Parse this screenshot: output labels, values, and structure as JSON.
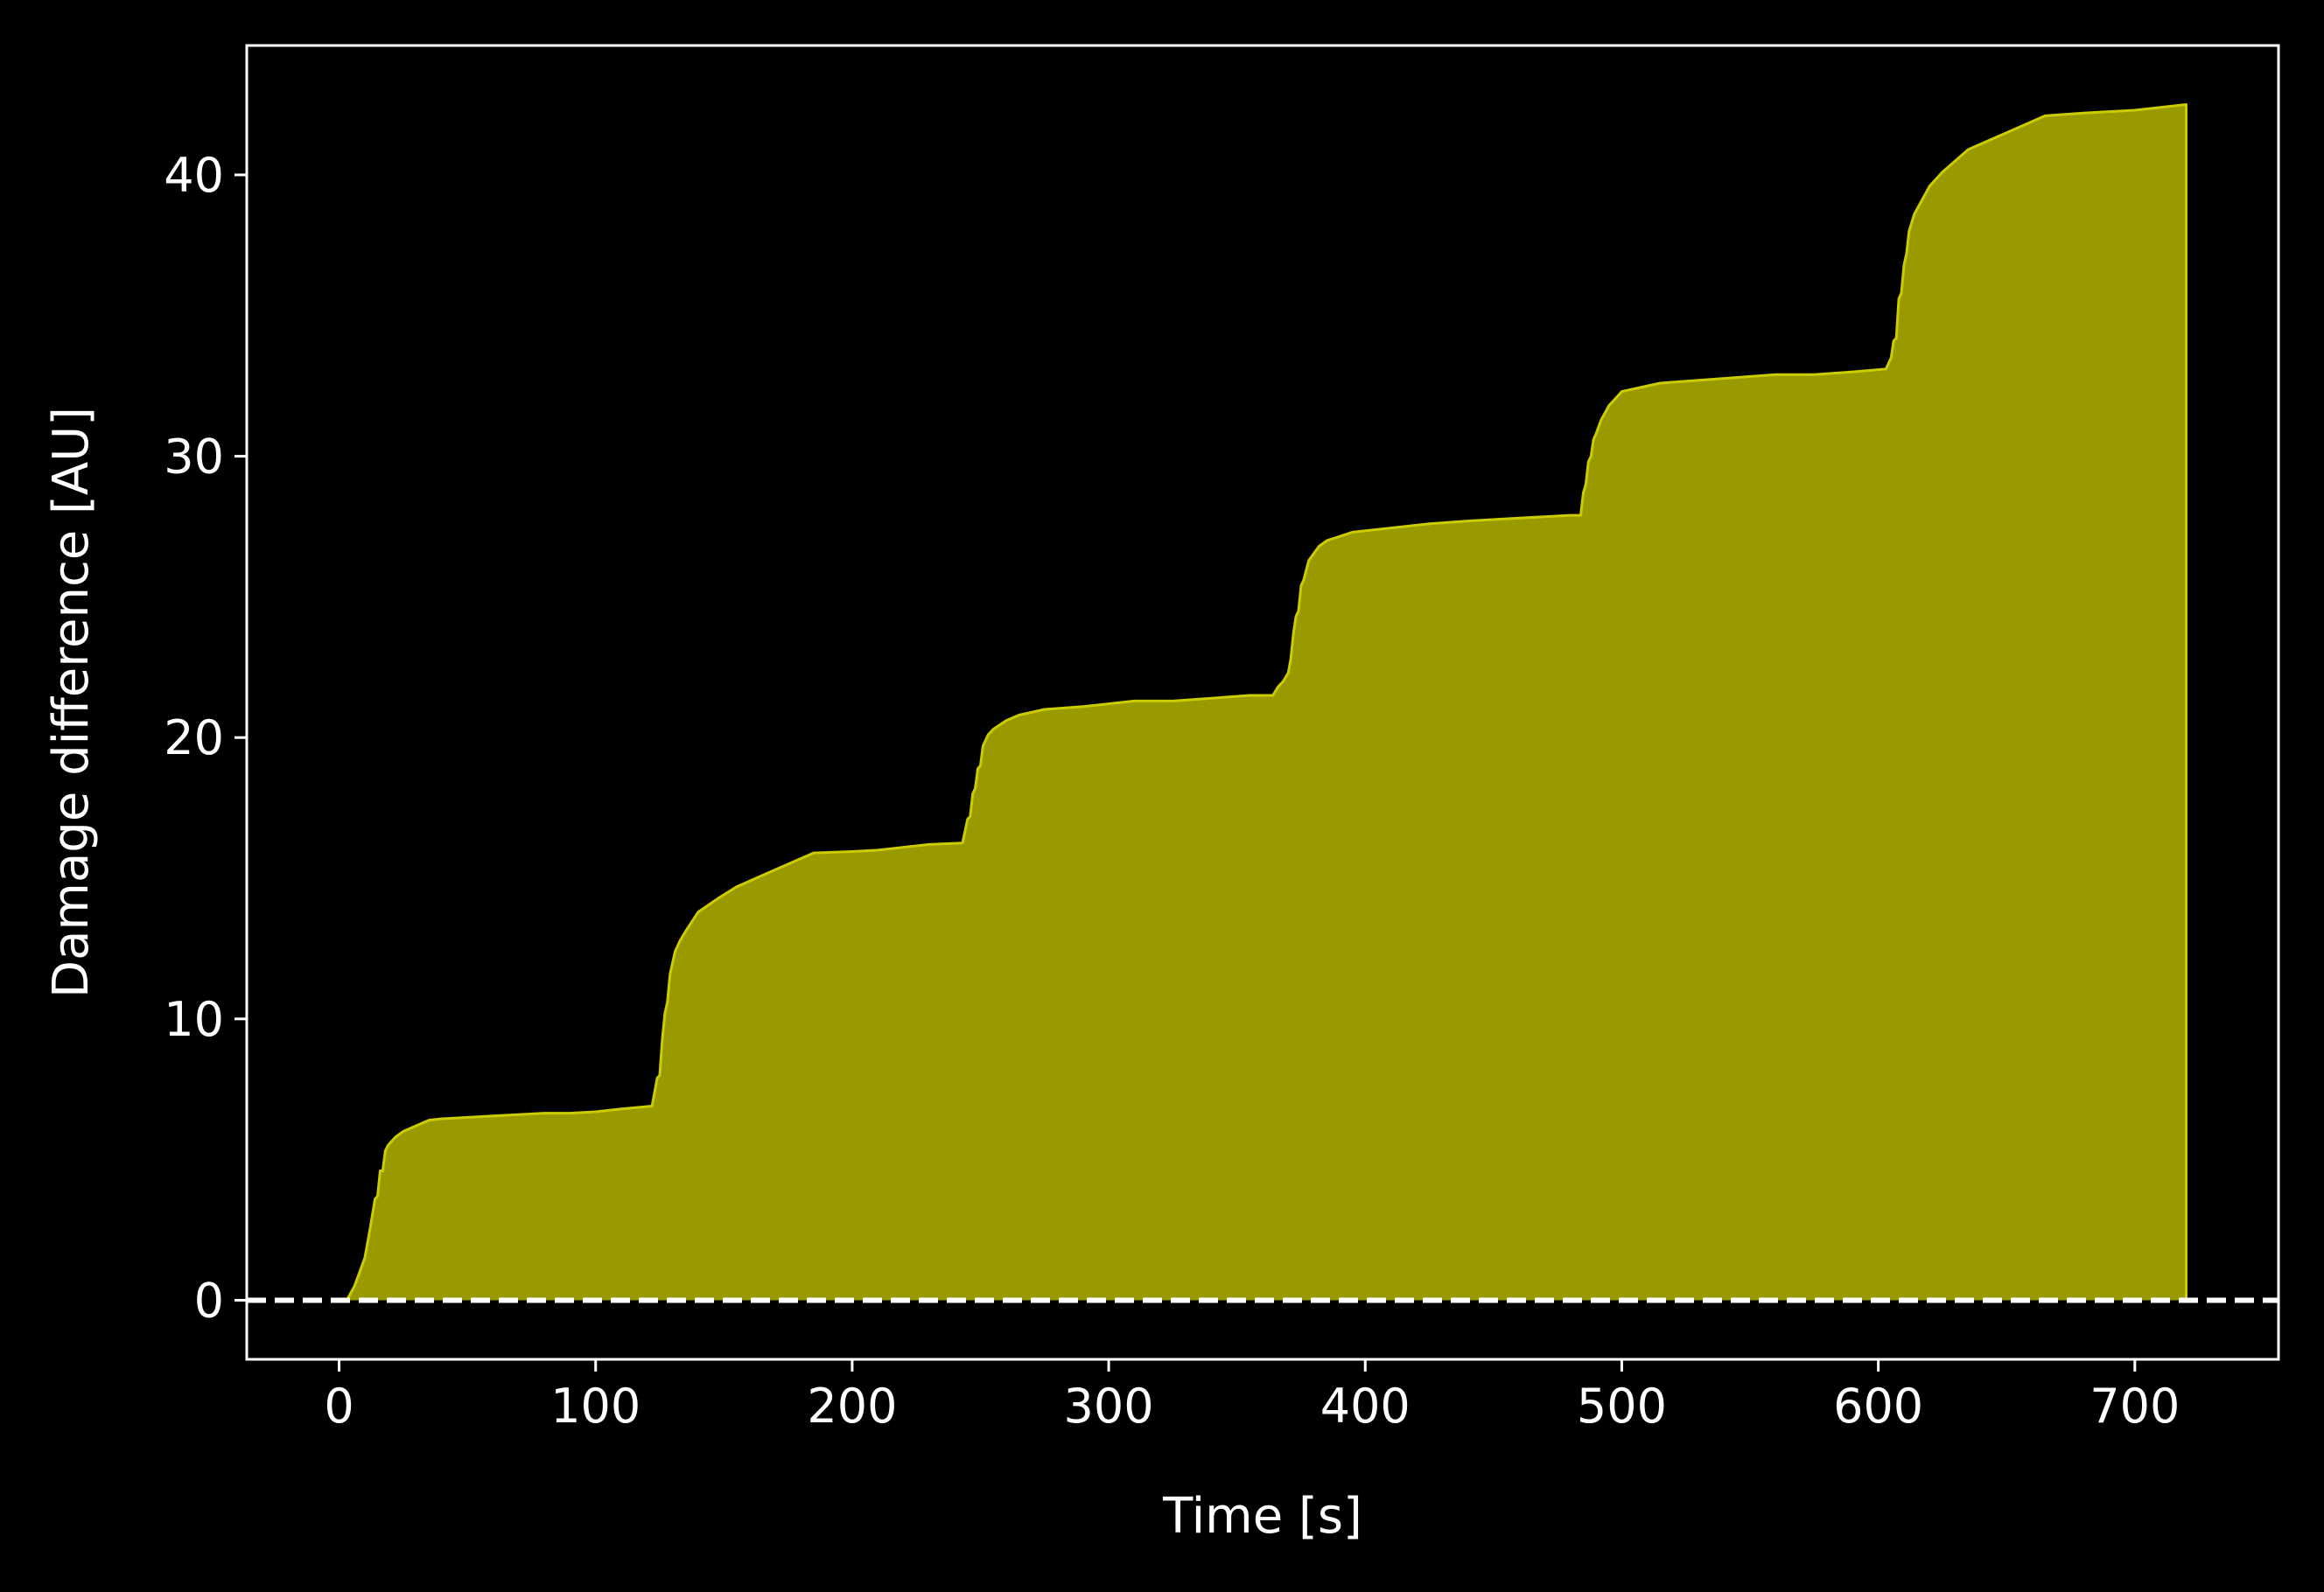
{
  "chart_data": {
    "type": "area",
    "title": "",
    "xlabel": "Time [s]",
    "ylabel": "Damage difference [AU]",
    "xlim": [
      -36,
      756
    ],
    "ylim": [
      -2.1,
      44.6
    ],
    "xticks": [
      0,
      100,
      200,
      300,
      400,
      500,
      600,
      700
    ],
    "yticks": [
      0,
      10,
      20,
      30,
      40
    ],
    "x_tick_labels": [
      "0",
      "100",
      "200",
      "300",
      "400",
      "500",
      "600",
      "700"
    ],
    "y_tick_labels": [
      "0",
      "10",
      "20",
      "30",
      "40"
    ],
    "grid": false,
    "legend": "none",
    "reference_line": {
      "y": 0,
      "style": "dashed",
      "color": "#ffffff"
    },
    "colors": {
      "background": "#000000",
      "fill": "#999900",
      "line": "#cccc00",
      "axes": "#ffffff"
    },
    "series": [
      {
        "x": [
          3,
          6,
          8,
          10,
          12,
          14,
          15,
          16,
          17,
          18,
          19,
          20,
          22,
          25,
          30,
          35,
          40,
          60,
          80,
          90,
          100,
          110,
          122,
          124,
          125,
          126,
          127,
          128,
          129,
          130,
          131,
          133,
          135,
          140,
          148,
          155,
          165,
          175,
          185,
          200,
          210,
          220,
          230,
          243,
          245,
          246,
          247,
          248,
          249,
          250,
          251,
          253,
          255,
          260,
          265,
          275,
          290,
          300,
          310,
          325,
          340,
          355,
          364,
          366,
          368,
          370,
          371,
          372,
          373,
          374,
          375,
          376,
          378,
          382,
          385,
          395,
          410,
          425,
          440,
          460,
          480,
          484,
          485,
          486,
          487,
          488,
          489,
          490,
          492,
          495,
          500,
          505,
          515,
          530,
          545,
          560,
          575,
          590,
          603,
          605,
          606,
          607,
          608,
          609,
          610,
          611,
          612,
          614,
          617,
          620,
          625,
          635,
          650,
          665,
          680,
          700,
          720
        ],
        "y": [
          0,
          0.5,
          1.0,
          1.5,
          2.5,
          3.6,
          3.7,
          4.6,
          4.6,
          5.3,
          5.5,
          5.6,
          5.8,
          6.0,
          6.2,
          6.4,
          6.45,
          6.55,
          6.65,
          6.65,
          6.7,
          6.8,
          6.9,
          7.9,
          8.0,
          9.3,
          10.2,
          10.6,
          11.6,
          12.0,
          12.4,
          12.8,
          13.1,
          13.8,
          14.3,
          14.7,
          15.1,
          15.5,
          15.9,
          15.95,
          16.0,
          16.1,
          16.2,
          16.25,
          17.1,
          17.2,
          18.0,
          18.2,
          18.9,
          19.0,
          19.7,
          20.1,
          20.3,
          20.6,
          20.8,
          21.0,
          21.1,
          21.2,
          21.3,
          21.3,
          21.4,
          21.5,
          21.5,
          21.8,
          22.0,
          22.3,
          22.8,
          23.7,
          24.3,
          24.5,
          25.4,
          25.6,
          26.3,
          26.8,
          27.0,
          27.3,
          27.45,
          27.6,
          27.7,
          27.8,
          27.9,
          27.9,
          28.7,
          29.0,
          29.8,
          30.0,
          30.6,
          30.8,
          31.3,
          31.8,
          32.3,
          32.4,
          32.6,
          32.7,
          32.8,
          32.9,
          32.9,
          33.0,
          33.1,
          33.5,
          34.1,
          34.2,
          35.6,
          35.8,
          36.8,
          37.2,
          38.0,
          38.6,
          39.1,
          39.6,
          40.1,
          40.9,
          41.5,
          42.1,
          42.2,
          42.3,
          42.5
        ]
      }
    ]
  }
}
